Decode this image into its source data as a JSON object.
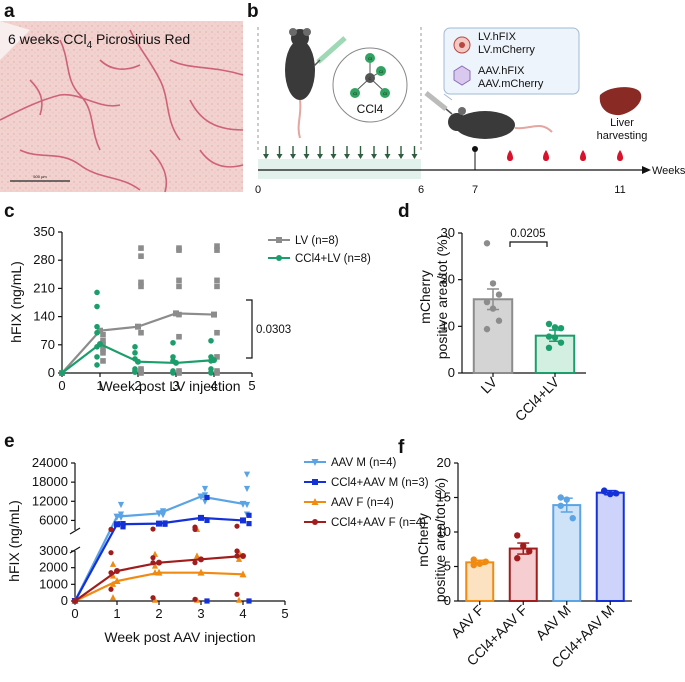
{
  "panel_labels": {
    "a": "a",
    "b": "b",
    "c": "c",
    "d": "d",
    "e": "e",
    "f": "f"
  },
  "panel_a": {
    "title_prefix": "6 weeks CCl",
    "title_sub": "4",
    "title_suffix": " Picrosirius Red",
    "scale_bar": "500 µm"
  },
  "panel_b": {
    "ccl4_label": "CCl4",
    "cl_label": "Cl",
    "c_label": "C",
    "lv_line1": "LV.hFIX",
    "lv_line2": "LV.mCherry",
    "aav_line1": "AAV.hFIX",
    "aav_line2": "AAV.mCherry",
    "harvest_line1": "Liver",
    "harvest_line2": "harvesting",
    "axis_label": "Weeks",
    "ticks": [
      "0",
      "6",
      "7",
      "11"
    ]
  },
  "chart_data": [
    {
      "id": "c",
      "type": "line+scatter",
      "title": "",
      "xlabel": "Week post LV injection",
      "ylabel": "hFIX (ng/mL)",
      "xlim": [
        0,
        5
      ],
      "ylim": [
        0,
        350
      ],
      "xticks": [
        "0",
        "1",
        "2",
        "3",
        "4",
        "5"
      ],
      "yticks": [
        "0",
        "70",
        "140",
        "210",
        "280",
        "350"
      ],
      "series": [
        {
          "name": "LV (n=8)",
          "color": "#8c8c8c",
          "marker": "square",
          "mean": [
            [
              0,
              0
            ],
            [
              1,
              105
            ],
            [
              2,
              115
            ],
            [
              3,
              148
            ],
            [
              4,
              145
            ]
          ],
          "points": [
            [
              1,
              70
            ],
            [
              1,
              60
            ],
            [
              1,
              50
            ],
            [
              1,
              95
            ],
            [
              1,
              30
            ],
            [
              1,
              80
            ],
            [
              2,
              310
            ],
            [
              2,
              290
            ],
            [
              2,
              225
            ],
            [
              2,
              215
            ],
            [
              2,
              100
            ],
            [
              2,
              5
            ],
            [
              2,
              0
            ],
            [
              2,
              10
            ],
            [
              3,
              310
            ],
            [
              3,
              305
            ],
            [
              3,
              230
            ],
            [
              3,
              215
            ],
            [
              3,
              145
            ],
            [
              3,
              0
            ],
            [
              3,
              5
            ],
            [
              3,
              90
            ],
            [
              4,
              315
            ],
            [
              4,
              305
            ],
            [
              4,
              230
            ],
            [
              4,
              215
            ],
            [
              4,
              100
            ],
            [
              4,
              5
            ],
            [
              4,
              0
            ],
            [
              4,
              40
            ]
          ]
        },
        {
          "name": "CCl4+LV (n=8)",
          "color": "#1b9e6b",
          "marker": "circle",
          "mean": [
            [
              0,
              0
            ],
            [
              1,
              72
            ],
            [
              2,
              28
            ],
            [
              3,
              25
            ],
            [
              4,
              32
            ]
          ],
          "points": [
            [
              1,
              200
            ],
            [
              1,
              165
            ],
            [
              1,
              115
            ],
            [
              1,
              100
            ],
            [
              1,
              65
            ],
            [
              1,
              40
            ],
            [
              1,
              20
            ],
            [
              2,
              65
            ],
            [
              2,
              50
            ],
            [
              2,
              35
            ],
            [
              2,
              10
            ],
            [
              2,
              5
            ],
            [
              2,
              2
            ],
            [
              3,
              75
            ],
            [
              3,
              40
            ],
            [
              3,
              30
            ],
            [
              3,
              5
            ],
            [
              3,
              2
            ],
            [
              3,
              0
            ],
            [
              4,
              80
            ],
            [
              4,
              40
            ],
            [
              4,
              30
            ],
            [
              4,
              10
            ],
            [
              4,
              2
            ],
            [
              4,
              0
            ]
          ]
        }
      ],
      "annotation": "0.0303"
    },
    {
      "id": "d",
      "type": "bar",
      "ylabel_line1": "mCherry",
      "ylabel_line2": "positive area/tot (%)",
      "ylim": [
        0,
        30
      ],
      "yticks": [
        "0",
        "10",
        "20",
        "30"
      ],
      "categories": [
        "LV",
        "CCl4+LV"
      ],
      "values": [
        15.8,
        8.0
      ],
      "sem": [
        2.2,
        1.2
      ],
      "colors": [
        "#8c8c8c",
        "#1b9e6b"
      ],
      "points": [
        [
          27.8,
          19.2,
          16.8,
          15.2,
          13.8,
          11.2,
          9.4
        ],
        [
          10.5,
          9.8,
          9.6,
          7.8,
          7.6,
          6.5,
          5.4
        ]
      ],
      "annotation": "0.0205"
    },
    {
      "id": "e",
      "type": "line+scatter",
      "xlabel": "Week post AAV injection",
      "ylabel": "hFIX (ng/mL)",
      "xlim": [
        0,
        5
      ],
      "yticks_upper": [
        "6000",
        "12000",
        "18000",
        "24000"
      ],
      "yticks_lower": [
        "0",
        "1000",
        "2000",
        "3000"
      ],
      "xticks": [
        "0",
        "1",
        "2",
        "3",
        "4",
        "5"
      ],
      "series": [
        {
          "name": "AAV M (n=4)",
          "color": "#5aa4e6",
          "marker": "tri-down",
          "mean": [
            [
              0,
              0
            ],
            [
              1,
              7200
            ],
            [
              2,
              8200
            ],
            [
              3,
              13500
            ],
            [
              4,
              11200
            ]
          ],
          "points": [
            [
              1,
              11000
            ],
            [
              1,
              8000
            ],
            [
              1,
              7000
            ],
            [
              1,
              5000
            ],
            [
              2,
              9000
            ],
            [
              2,
              8500
            ],
            [
              2,
              7800
            ],
            [
              3,
              16000
            ],
            [
              3,
              14000
            ],
            [
              3,
              12000
            ],
            [
              4,
              20500
            ],
            [
              4,
              16000
            ],
            [
              4,
              11000
            ],
            [
              4,
              8000
            ]
          ]
        },
        {
          "name": "CCl4+AAV M (n=3)",
          "color": "#1431d9",
          "marker": "square",
          "mean": [
            [
              0,
              0
            ],
            [
              1,
              4800
            ],
            [
              2,
              5000
            ],
            [
              3,
              6800
            ],
            [
              4,
              6000
            ]
          ],
          "points": [
            [
              1,
              5000
            ],
            [
              1,
              4500
            ],
            [
              1,
              4000
            ],
            [
              2,
              5200
            ],
            [
              2,
              4800
            ],
            [
              3,
              13200
            ],
            [
              3,
              6000
            ],
            [
              3,
              0
            ],
            [
              4,
              7600
            ],
            [
              4,
              5000
            ],
            [
              4,
              0
            ]
          ]
        },
        {
          "name": "AAV F (n=4)",
          "color": "#f08a10",
          "marker": "triangle",
          "mean": [
            [
              0,
              0
            ],
            [
              1,
              1200
            ],
            [
              2,
              1700
            ],
            [
              3,
              1700
            ],
            [
              4,
              1600
            ]
          ],
          "points": [
            [
              1,
              2200
            ],
            [
              1,
              1500
            ],
            [
              1,
              1000
            ],
            [
              1,
              200
            ],
            [
              2,
              2800
            ],
            [
              2,
              2100
            ],
            [
              2,
              1700
            ],
            [
              2,
              50
            ],
            [
              3,
              3200
            ],
            [
              3,
              2700
            ],
            [
              3,
              50
            ],
            [
              4,
              2900
            ],
            [
              4,
              2500
            ],
            [
              4,
              50
            ]
          ]
        },
        {
          "name": "CCl4+AAV F (n=4)",
          "color": "#a11d1d",
          "marker": "circle",
          "mean": [
            [
              0,
              0
            ],
            [
              1,
              1800
            ],
            [
              2,
              2300
            ],
            [
              3,
              2500
            ],
            [
              4,
              2700
            ]
          ],
          "points": [
            [
              1,
              3200
            ],
            [
              1,
              2900
            ],
            [
              1,
              1700
            ],
            [
              1,
              700
            ],
            [
              2,
              3300
            ],
            [
              2,
              2600
            ],
            [
              2,
              2300
            ],
            [
              2,
              200
            ],
            [
              3,
              3900
            ],
            [
              3,
              3200
            ],
            [
              3,
              2300
            ],
            [
              3,
              100
            ],
            [
              4,
              4200
            ],
            [
              4,
              3000
            ],
            [
              4,
              2700
            ],
            [
              4,
              400
            ]
          ]
        }
      ]
    },
    {
      "id": "f",
      "type": "bar",
      "ylabel_line1": "mCherry",
      "ylabel_line2": "positive area/tot (%)",
      "ylim": [
        0,
        20
      ],
      "yticks": [
        "0",
        "5",
        "10",
        "15",
        "20"
      ],
      "categories": [
        "AAV F",
        "CCl4+AAV F",
        "AAV M",
        "CCl4+AAV M"
      ],
      "values": [
        5.6,
        7.6,
        13.9,
        15.7
      ],
      "sem": [
        0.3,
        0.8,
        1.0,
        0.3
      ],
      "colors": [
        "#f08a10",
        "#a11d1d",
        "#5aa4e6",
        "#1431d9"
      ],
      "fills": [
        "#fde2c2",
        "#f6cdd0",
        "#cfe3f8",
        "#cdd3fb"
      ],
      "points": [
        [
          5.2,
          5.4,
          5.7,
          6.0
        ],
        [
          9.5,
          8.0,
          7.2,
          6.2
        ],
        [
          15.0,
          14.7,
          12.0,
          13.8
        ],
        [
          15.9,
          15.5,
          15.6,
          16.0
        ]
      ]
    }
  ]
}
